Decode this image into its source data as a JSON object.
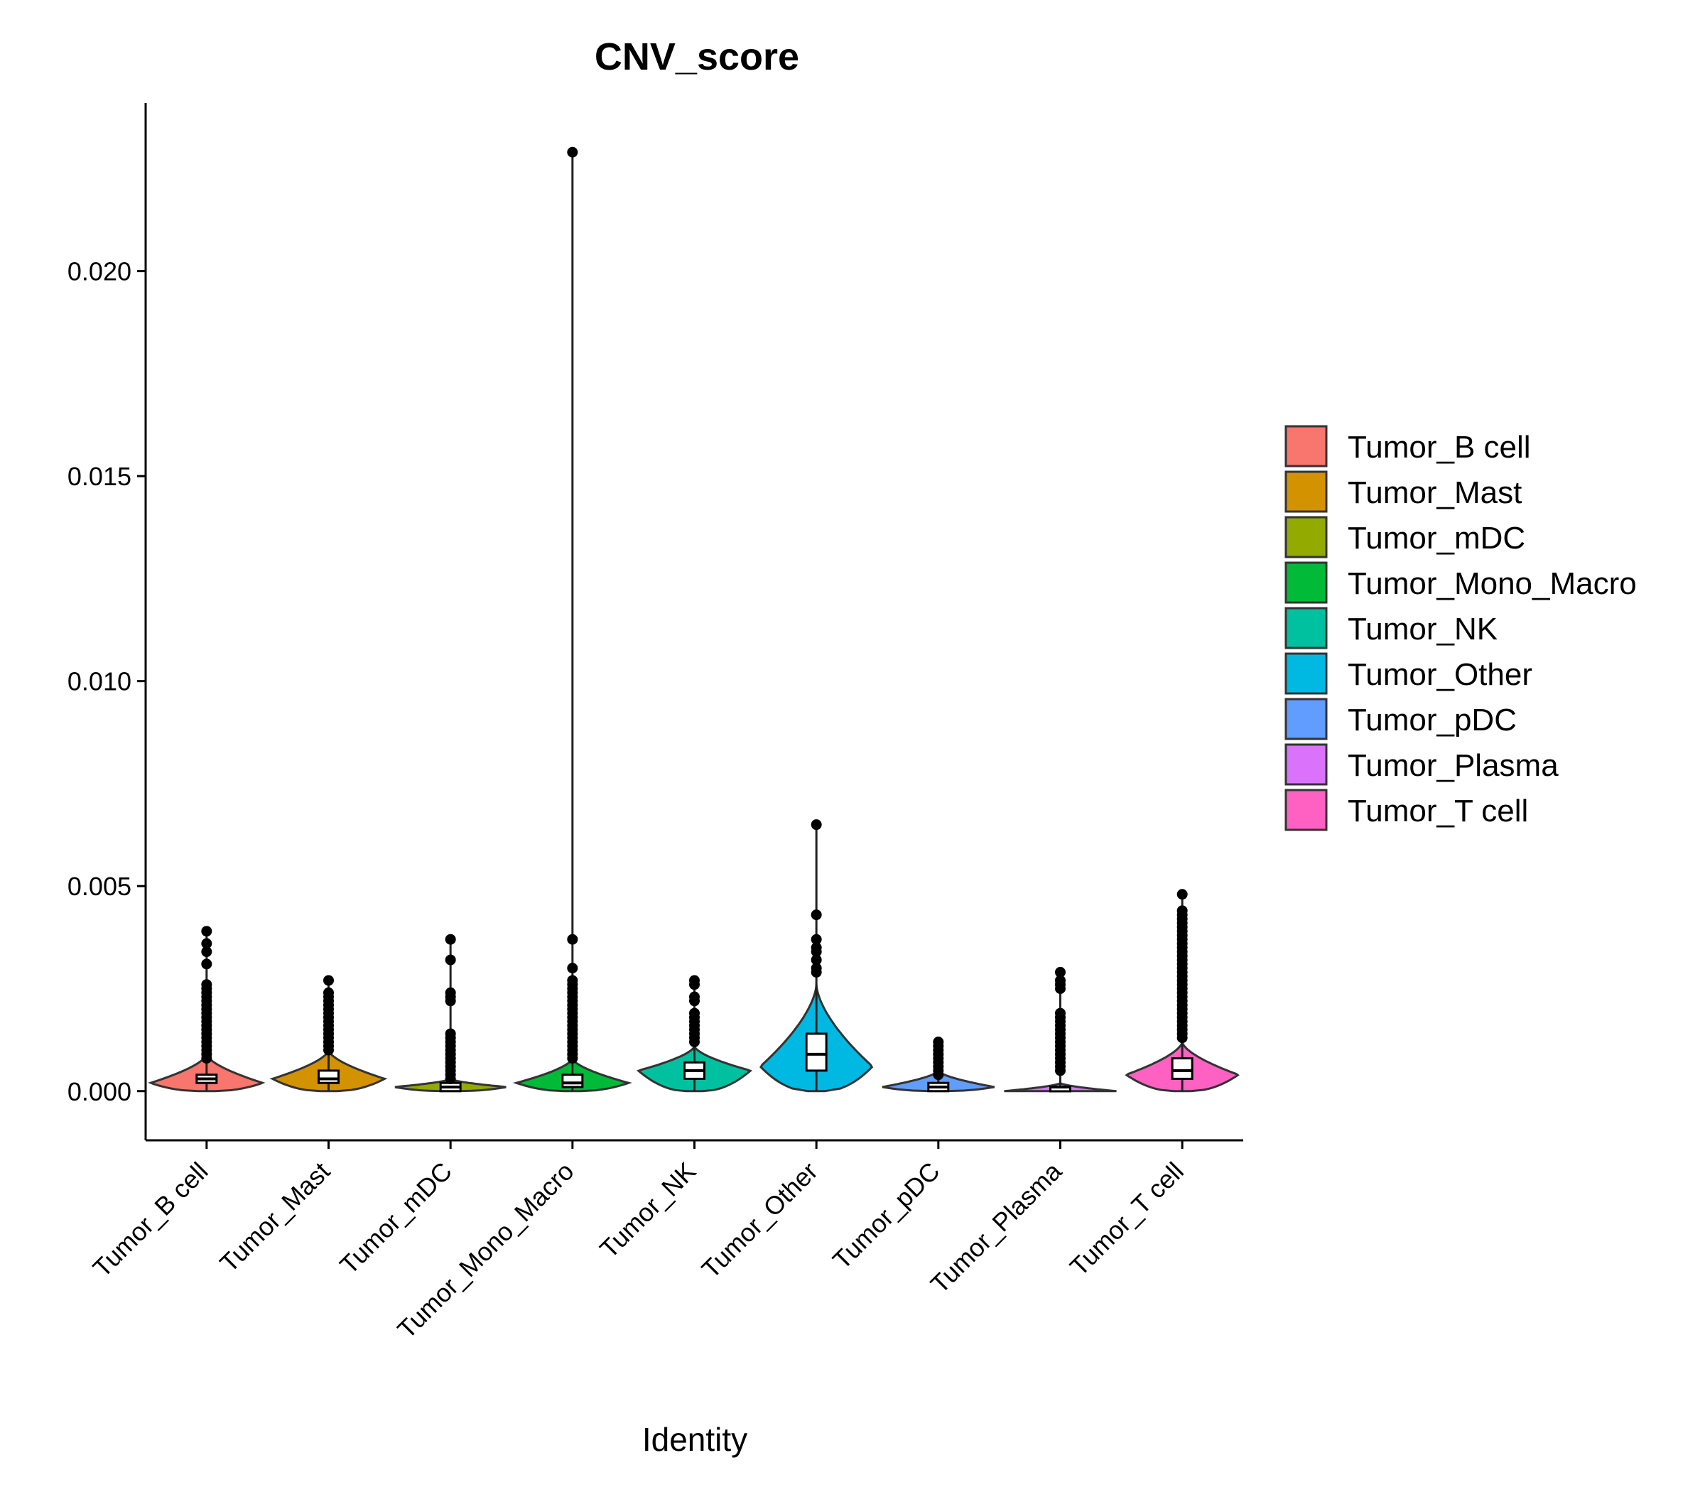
{
  "chart_data": {
    "type": "violin",
    "title": "CNV_score",
    "xlabel": "Identity",
    "ylabel": "",
    "ylim": [
      -0.0012,
      0.0241
    ],
    "y_ticks": [
      0.0,
      0.005,
      0.01,
      0.015,
      0.02
    ],
    "y_tick_labels": [
      "0.000",
      "0.005",
      "0.010",
      "0.015",
      "0.020"
    ],
    "legend_position": "right",
    "categories": [
      "Tumor_B cell",
      "Tumor_Mast",
      "Tumor_mDC",
      "Tumor_Mono_Macro",
      "Tumor_NK",
      "Tumor_Other",
      "Tumor_pDC",
      "Tumor_Plasma",
      "Tumor_T cell"
    ],
    "groups": [
      {
        "name": "Tumor_B cell",
        "color": "#F8766D",
        "min": 0.0,
        "q1": 0.0002,
        "median": 0.0003,
        "q3": 0.0004,
        "max": 0.0039,
        "outliers": [
          0.0039,
          0.0036,
          0.0034,
          0.0031,
          0.0026,
          0.0025,
          0.0024,
          0.0023,
          0.0022,
          0.0021,
          0.002,
          0.0019,
          0.0018,
          0.0017,
          0.0016,
          0.0015,
          0.0014,
          0.0013,
          0.0012,
          0.0011,
          0.001,
          0.0009,
          0.0008
        ],
        "violin_peak": 0.0002,
        "violin_top": 0.0009,
        "violin_halfwidth": 0.5
      },
      {
        "name": "Tumor_Mast",
        "color": "#D39200",
        "min": 0.0,
        "q1": 0.0002,
        "median": 0.0003,
        "q3": 0.0005,
        "max": 0.0027,
        "outliers": [
          0.0027,
          0.0024,
          0.0023,
          0.0022,
          0.0021,
          0.002,
          0.0019,
          0.0018,
          0.0017,
          0.0016,
          0.0015,
          0.0014,
          0.0013,
          0.0012,
          0.0011,
          0.001
        ],
        "violin_peak": 0.0003,
        "violin_top": 0.001,
        "violin_halfwidth": 0.5
      },
      {
        "name": "Tumor_mDC",
        "color": "#93AA00",
        "min": 0.0,
        "q1": 0.0,
        "median": 0.0001,
        "q3": 0.0002,
        "max": 0.0037,
        "outliers": [
          0.0037,
          0.0032,
          0.0024,
          0.0023,
          0.0022,
          0.0014,
          0.0013,
          0.0012,
          0.0011,
          0.001,
          0.0009,
          0.0008,
          0.0007,
          0.0006,
          0.0005,
          0.0004,
          0.0003
        ],
        "violin_peak": 0.0001,
        "violin_top": 0.0003,
        "violin_halfwidth": 0.5
      },
      {
        "name": "Tumor_Mono_Macro",
        "color": "#00BA38",
        "min": 0.0,
        "q1": 0.0001,
        "median": 0.0002,
        "q3": 0.0004,
        "max": 0.0229,
        "outliers": [
          0.0229,
          0.0037,
          0.003,
          0.0027,
          0.0026,
          0.0025,
          0.0024,
          0.0023,
          0.0022,
          0.0021,
          0.002,
          0.0019,
          0.0018,
          0.0017,
          0.0016,
          0.0015,
          0.0014,
          0.0013,
          0.0012,
          0.0011,
          0.001,
          0.0009,
          0.0008
        ],
        "violin_peak": 0.0002,
        "violin_top": 0.0008,
        "violin_halfwidth": 0.5
      },
      {
        "name": "Tumor_NK",
        "color": "#00C19F",
        "min": 0.0,
        "q1": 0.0003,
        "median": 0.0005,
        "q3": 0.0007,
        "max": 0.0027,
        "outliers": [
          0.0027,
          0.0026,
          0.0023,
          0.0022,
          0.0019,
          0.0018,
          0.0017,
          0.0016,
          0.0015,
          0.0014,
          0.0013,
          0.0012
        ],
        "violin_peak": 0.0005,
        "violin_top": 0.0011,
        "violin_halfwidth": 0.5
      },
      {
        "name": "Tumor_Other",
        "color": "#00B9E3",
        "min": 0.0,
        "q1": 0.0005,
        "median": 0.0009,
        "q3": 0.0014,
        "max": 0.0065,
        "outliers": [
          0.0065,
          0.0043,
          0.0037,
          0.0035,
          0.0034,
          0.0032,
          0.003,
          0.0029
        ],
        "violin_peak": 0.0006,
        "violin_top": 0.0026,
        "violin_halfwidth": 0.5
      },
      {
        "name": "Tumor_pDC",
        "color": "#619CFF",
        "min": 0.0,
        "q1": 0.0,
        "median": 0.0001,
        "q3": 0.0002,
        "max": 0.0012,
        "outliers": [
          0.0012,
          0.0011,
          0.001,
          0.0009,
          0.0008,
          0.0007,
          0.0006,
          0.0005,
          0.0004
        ],
        "violin_peak": 0.0001,
        "violin_top": 0.0005,
        "violin_halfwidth": 0.5
      },
      {
        "name": "Tumor_Plasma",
        "color": "#DB72FB",
        "min": 0.0,
        "q1": 0.0,
        "median": 0.0001,
        "q3": 0.0001,
        "max": 0.0029,
        "outliers": [
          0.0029,
          0.0027,
          0.0026,
          0.0025,
          0.0019,
          0.0018,
          0.0017,
          0.0016,
          0.0015,
          0.0014,
          0.0013,
          0.0012,
          0.0011,
          0.001,
          0.0009,
          0.0008,
          0.0007,
          0.0006,
          0.0005
        ],
        "violin_peak": 0.0,
        "violin_top": 0.0002,
        "violin_halfwidth": 0.5
      },
      {
        "name": "Tumor_T cell",
        "color": "#FF61C3",
        "min": 0.0,
        "q1": 0.0003,
        "median": 0.0005,
        "q3": 0.0008,
        "max": 0.0048,
        "outliers": [
          0.0048,
          0.0044,
          0.0043,
          0.0042,
          0.0041,
          0.004,
          0.0039,
          0.0038,
          0.0037,
          0.0036,
          0.0035,
          0.0034,
          0.0033,
          0.0032,
          0.0031,
          0.003,
          0.0029,
          0.0028,
          0.0027,
          0.0026,
          0.0025,
          0.0024,
          0.0023,
          0.0022,
          0.0021,
          0.002,
          0.0019,
          0.0018,
          0.0017,
          0.0016,
          0.0015,
          0.0014,
          0.0013
        ],
        "violin_peak": 0.0004,
        "violin_top": 0.0012,
        "violin_halfwidth": 0.5
      }
    ]
  }
}
